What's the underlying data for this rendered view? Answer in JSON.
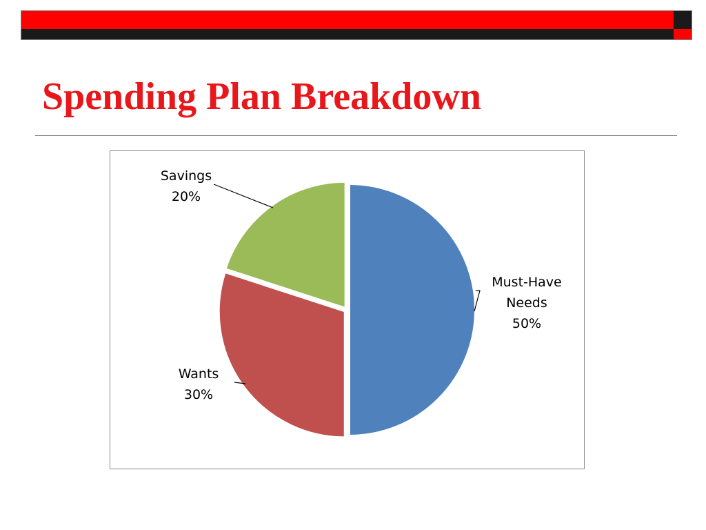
{
  "slide": {
    "title": "Spending Plan Breakdown"
  },
  "colors": {
    "accent_red": "#ff0000",
    "title_red": "#e8171b",
    "dark": "#1a1a1a"
  },
  "chart_data": {
    "type": "pie",
    "title": "",
    "slices": [
      {
        "label_lines": [
          "Must-Have",
          "Needs",
          "50%"
        ],
        "value": 50,
        "color": "#4f81bd"
      },
      {
        "label_lines": [
          "Wants",
          "30%"
        ],
        "value": 30,
        "color": "#c0504d"
      },
      {
        "label_lines": [
          "Savings",
          "20%"
        ],
        "value": 20,
        "color": "#9bbb59"
      }
    ],
    "start_angle_deg": 0,
    "direction": "clockwise",
    "legend": "none"
  }
}
